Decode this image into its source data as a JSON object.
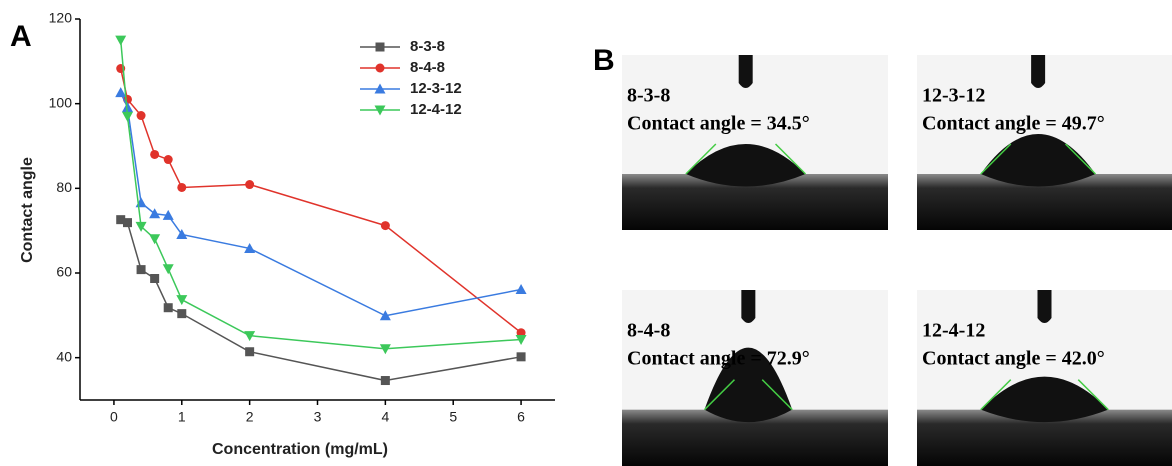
{
  "chart_data": {
    "type": "line",
    "panel_label": "A",
    "x_label": "Concentration (mg/mL)",
    "y_label": "Contact angle",
    "x": [
      0.1,
      0.2,
      0.4,
      0.6,
      0.8,
      1,
      2,
      4,
      6
    ],
    "series": [
      {
        "name": "8-3-8",
        "color": "#555555",
        "marker": "square",
        "values": [
          72.6,
          71.9,
          60.8,
          58.7,
          51.8,
          50.4,
          41.4,
          34.6,
          40.2
        ]
      },
      {
        "name": "8-4-8",
        "color": "#e0332b",
        "marker": "circle",
        "values": [
          108.3,
          101,
          97.2,
          88,
          86.8,
          80.2,
          80.9,
          71.2,
          45.9
        ]
      },
      {
        "name": "12-3-12",
        "color": "#3a7be0",
        "marker": "triangle-up",
        "values": [
          102.6,
          99.1,
          76.6,
          74,
          73.6,
          69.1,
          65.8,
          49.9,
          56.1
        ]
      },
      {
        "name": "12-4-12",
        "color": "#3cc85a",
        "marker": "triangle-down",
        "values": [
          115,
          97,
          71,
          68.1,
          61,
          53.7,
          45.2,
          42.1,
          44.3
        ]
      }
    ],
    "xlim": [
      -0.5,
      6.5
    ],
    "xticks": [
      0,
      1,
      2,
      3,
      4,
      5,
      6
    ],
    "ylim": [
      30,
      120
    ],
    "yticks": [
      40,
      60,
      80,
      100,
      120
    ],
    "legend": "upper right"
  },
  "panel_b": {
    "label": "B",
    "images": [
      {
        "sample": "8-3-8",
        "caption": "Contact angle = 34.5°"
      },
      {
        "sample": "12-3-12",
        "caption": "Contact angle = 49.7°"
      },
      {
        "sample": "8-4-8",
        "caption": "Contact angle = 72.9°"
      },
      {
        "sample": "12-4-12",
        "caption": "Contact angle = 42.0°"
      }
    ]
  }
}
